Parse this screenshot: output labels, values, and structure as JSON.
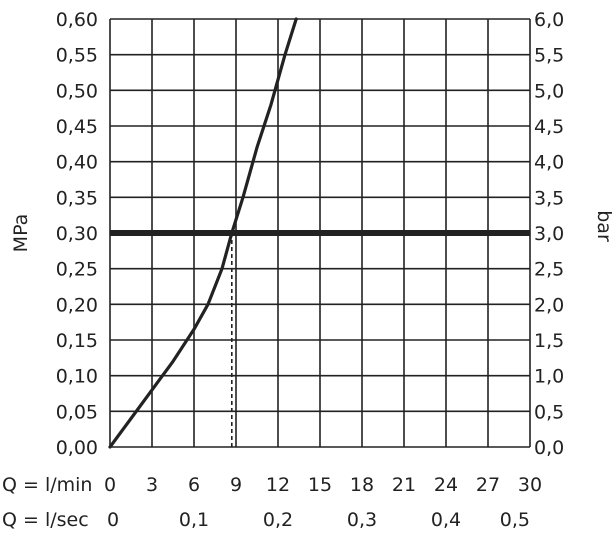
{
  "chart_data": {
    "type": "line",
    "y_left_label": "MPa",
    "y_right_label": "bar",
    "x_label_lmin": "Q = l/min",
    "x_label_lsec": "Q = l/sec",
    "x_ticks_lmin": [
      "0",
      "3",
      "6",
      "9",
      "12",
      "15",
      "18",
      "21",
      "24",
      "27",
      "30"
    ],
    "x_ticks_lsec": [
      "0",
      "0,1",
      "0,2",
      "0,3",
      "0,4",
      "0,5"
    ],
    "y_ticks_mpa": [
      "0,00",
      "0,05",
      "0,10",
      "0,15",
      "0,20",
      "0,25",
      "0,30",
      "0,35",
      "0,40",
      "0,45",
      "0,50",
      "0,55",
      "0,60"
    ],
    "y_ticks_bar": [
      "0,0",
      "0,5",
      "1,0",
      "1,5",
      "2,0",
      "2,5",
      "3,0",
      "3,5",
      "4,0",
      "4,5",
      "5,0",
      "5,5",
      "6,0"
    ],
    "xlim": [
      0,
      30
    ],
    "ylim": [
      0,
      0.6
    ],
    "grid": true,
    "series": [
      {
        "x": [
          0,
          1.5,
          3,
          4.5,
          6,
          7,
          8,
          8.7,
          9.5,
          10.5,
          11.5,
          12.5,
          13.3
        ],
        "y": [
          0,
          0.04,
          0.08,
          0.12,
          0.165,
          0.2,
          0.25,
          0.3,
          0.35,
          0.42,
          0.48,
          0.55,
          0.6
        ],
        "color": "#222222"
      }
    ],
    "reference_line_y": 0.3,
    "reference_drop_x": 8.7
  },
  "colors": {
    "ink": "#222222",
    "grid": "#222222"
  }
}
